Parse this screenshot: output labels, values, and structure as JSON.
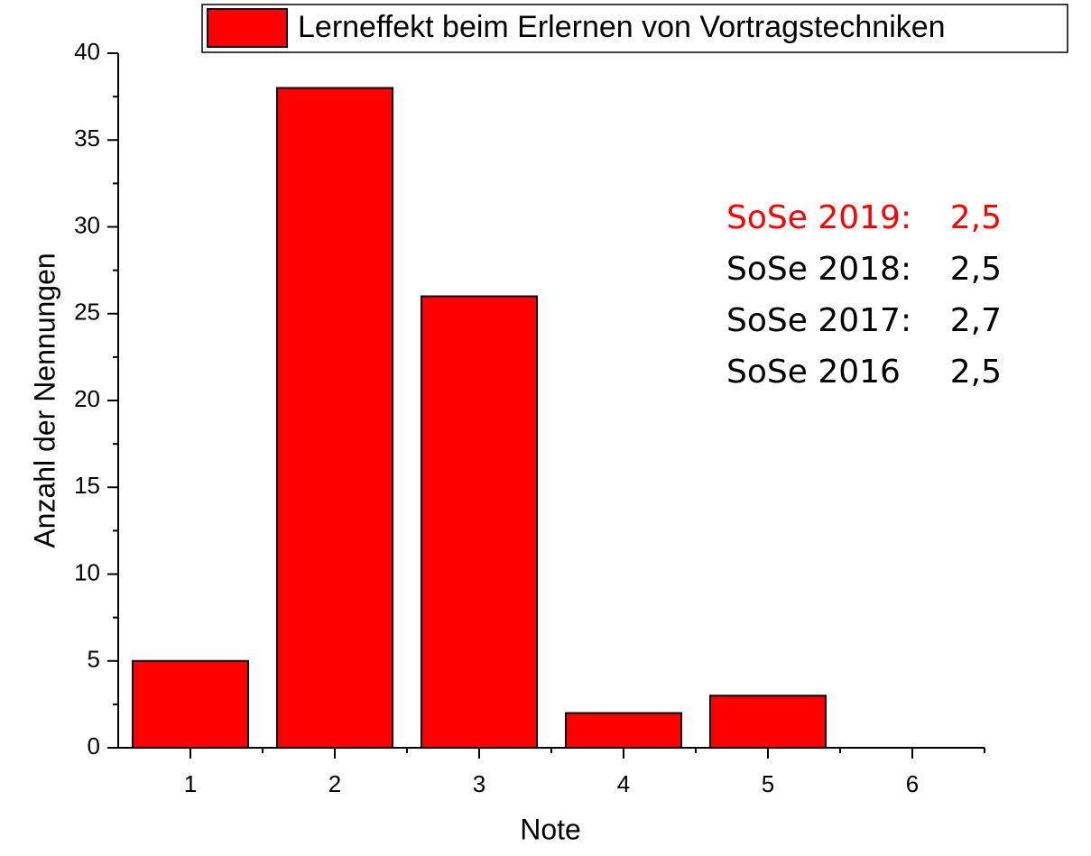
{
  "chart_data": {
    "type": "bar",
    "x_label": "Note",
    "y_label": "Anzahl der Nennungen",
    "categories": [
      1,
      2,
      3,
      4,
      5,
      6
    ],
    "series": [
      {
        "name": "Lerneffekt beim Erlernen von Vortragstechniken",
        "color": "#ff0000",
        "values": [
          5,
          38,
          26,
          2,
          3,
          0
        ]
      }
    ],
    "ylim": [
      0,
      40
    ],
    "yticks": [
      0,
      5,
      10,
      15,
      20,
      25,
      30,
      35,
      40
    ],
    "legend": "top-right",
    "annotations": [
      {
        "label": "SoSe 2019:",
        "value": "2,5",
        "color": "#ff0000"
      },
      {
        "label": "SoSe 2018:",
        "value": "2,5",
        "color": "#000000"
      },
      {
        "label": "SoSe 2017:",
        "value": "2,7",
        "color": "#000000"
      },
      {
        "label": "SoSe 2016",
        "value": "2,5",
        "color": "#000000"
      }
    ]
  }
}
